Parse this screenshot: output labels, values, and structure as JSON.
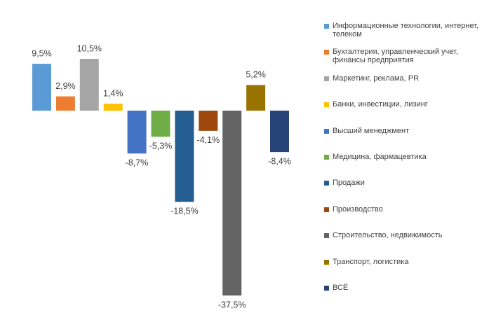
{
  "chart_data": {
    "type": "bar",
    "series": [
      {
        "name": "Информационные технологии, интернет, телеком",
        "color": "#5b9bd5",
        "values": [
          9.5
        ],
        "value_labels": [
          "9,5%"
        ]
      },
      {
        "name": "Бухгалтерия, управленческий учет, финансы предприятия",
        "color": "#ed7d31",
        "values": [
          2.9
        ],
        "value_labels": [
          "2,9%"
        ]
      },
      {
        "name": "Маркетинг, реклама, PR",
        "color": "#a5a5a5",
        "values": [
          10.5
        ],
        "value_labels": [
          "10,5%"
        ]
      },
      {
        "name": "Банки, инвестиции, лизинг",
        "color": "#ffc000",
        "values": [
          1.4
        ],
        "value_labels": [
          "1,4%"
        ]
      },
      {
        "name": "Высший менеджмент",
        "color": "#4472c4",
        "values": [
          -8.7
        ],
        "value_labels": [
          "-8,7%"
        ]
      },
      {
        "name": "Медицина, фармацевтика",
        "color": "#70ad47",
        "values": [
          -5.3
        ],
        "value_labels": [
          "-5,3%"
        ]
      },
      {
        "name": "Продажи",
        "color": "#255e91",
        "values": [
          -18.5
        ],
        "value_labels": [
          "-18,5%"
        ]
      },
      {
        "name": "Производство",
        "color": "#9e480e",
        "values": [
          -4.1
        ],
        "value_labels": [
          "-4,1%"
        ]
      },
      {
        "name": "Строительство, недвижимость",
        "color": "#636363",
        "values": [
          -37.5
        ],
        "value_labels": [
          "-37,5%"
        ]
      },
      {
        "name": "Транспорт, логистика",
        "color": "#997300",
        "values": [
          5.2
        ],
        "value_labels": [
          "5,2%"
        ]
      },
      {
        "name": "ВСЁ",
        "color": "#264478",
        "values": [
          -8.4
        ],
        "value_labels": [
          "-8,4%"
        ]
      }
    ],
    "legend": "right"
  }
}
